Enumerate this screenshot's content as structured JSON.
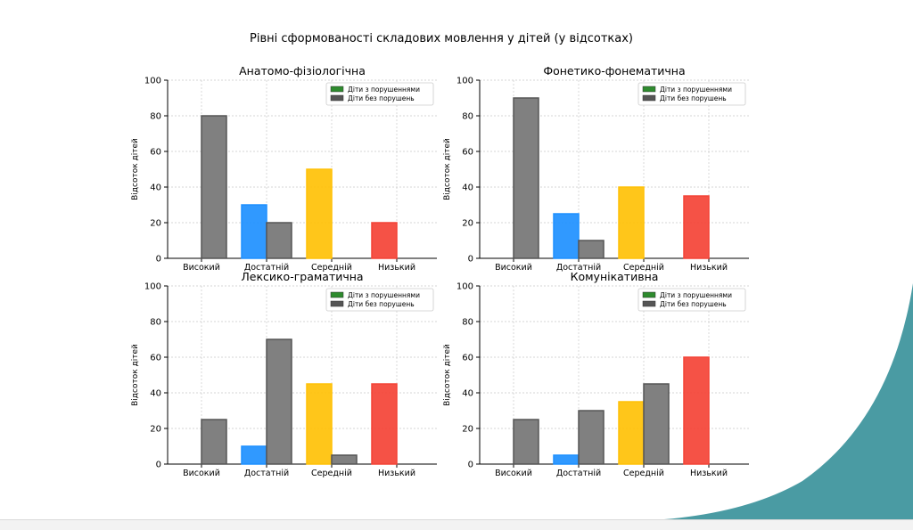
{
  "slide": {
    "title": "Рівні сформованості складових мовлення у дітей (у відсотках)",
    "decor_color": "#4a9ba3"
  },
  "legend": {
    "entries": [
      {
        "label": "Діти з порушеннями",
        "color": "#2e8b2e"
      },
      {
        "label": "Діти без порушень",
        "color": "#555555"
      }
    ]
  },
  "colors": {
    "level_colors": [
      "#808080",
      "#1e90ff",
      "#ffc107",
      "#f44336"
    ],
    "no_disorder": "#808080"
  },
  "chart_data": [
    {
      "type": "bar",
      "title": "Анатомо-фізіологічна",
      "ylabel": "Відсоток дітей",
      "categories": [
        "Високий",
        "Достатній",
        "Середній",
        "Низький"
      ],
      "ylim": [
        0,
        100
      ],
      "yticks": [
        0,
        20,
        40,
        60,
        80,
        100
      ],
      "grid": true,
      "legend_position": "top-right",
      "series": [
        {
          "name": "Діти з порушеннями",
          "values": [
            0,
            30,
            50,
            20
          ]
        },
        {
          "name": "Діти без порушень",
          "values": [
            80,
            20,
            0,
            0
          ]
        }
      ]
    },
    {
      "type": "bar",
      "title": "Фонетико-фонематична",
      "ylabel": "Відсоток дітей",
      "categories": [
        "Високий",
        "Достатній",
        "Середній",
        "Низький"
      ],
      "ylim": [
        0,
        100
      ],
      "yticks": [
        0,
        20,
        40,
        60,
        80,
        100
      ],
      "grid": true,
      "legend_position": "top-right",
      "series": [
        {
          "name": "Діти з порушеннями",
          "values": [
            0,
            25,
            40,
            35
          ]
        },
        {
          "name": "Діти без порушень",
          "values": [
            90,
            10,
            0,
            0
          ]
        }
      ]
    },
    {
      "type": "bar",
      "title": "Лексико-граматична",
      "ylabel": "Відсоток дітей",
      "categories": [
        "Високий",
        "Достатній",
        "Середній",
        "Низький"
      ],
      "ylim": [
        0,
        100
      ],
      "yticks": [
        0,
        20,
        40,
        60,
        80,
        100
      ],
      "grid": true,
      "legend_position": "top-right",
      "series": [
        {
          "name": "Діти з порушеннями",
          "values": [
            0,
            10,
            45,
            45
          ]
        },
        {
          "name": "Діти без порушень",
          "values": [
            25,
            70,
            5,
            0
          ]
        }
      ]
    },
    {
      "type": "bar",
      "title": "Комунікативна",
      "ylabel": "Відсоток дітей",
      "categories": [
        "Високий",
        "Достатній",
        "Середній",
        "Низький"
      ],
      "ylim": [
        0,
        100
      ],
      "yticks": [
        0,
        20,
        40,
        60,
        80,
        100
      ],
      "grid": true,
      "legend_position": "top-right",
      "series": [
        {
          "name": "Діти з порушеннями",
          "values": [
            0,
            5,
            35,
            60
          ]
        },
        {
          "name": "Діти без порушень",
          "values": [
            25,
            30,
            45,
            0
          ]
        }
      ]
    }
  ]
}
